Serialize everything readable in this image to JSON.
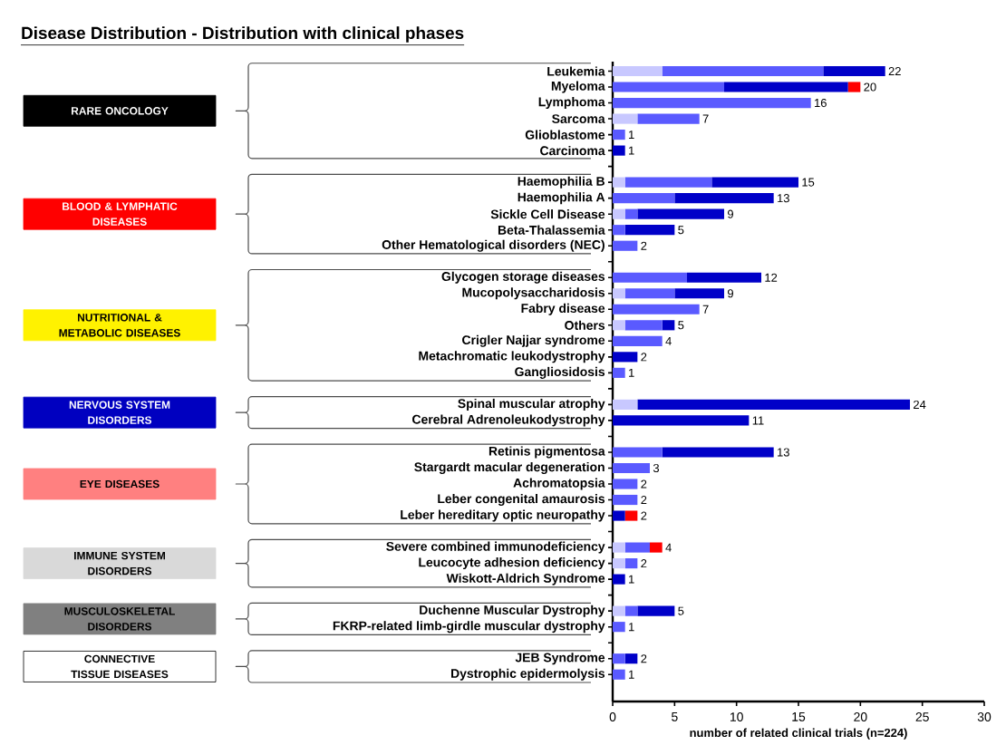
{
  "chart_data": {
    "type": "bar",
    "orientation": "horizontal",
    "stacked": true,
    "title": "Disease Distribution - Distribution with clinical phases",
    "xlabel": "number of related clinical trials (n=224)",
    "categories": [
      "Leukemia",
      "Myeloma",
      "Lymphoma",
      "Sarcoma",
      "Glioblastome",
      "Carcinoma",
      null,
      "Haemophilia B",
      "Haemophilia A",
      "Sickle Cell Disease",
      "Beta-Thalassemia",
      "Other Hematological disorders (NEC)",
      null,
      "Glycogen storage diseases",
      "Mucopolysaccharidosis",
      "Fabry disease",
      "Others",
      "Crigler Najjar syndrome",
      "Metachromatic leukodystrophy",
      "Gangliosidosis",
      null,
      "Spinal muscular atrophy",
      "Cerebral Adrenoleukodystrophy",
      null,
      "Retinis pigmentosa",
      "Stargardt macular degeneration",
      "Achromatopsia",
      "Leber congenital amaurosis",
      "Leber hereditary optic neuropathy",
      null,
      "Severe combined immunodeficiency",
      "Leucocyte adhesion deficiency",
      "Wiskott-Aldrich Syndrome",
      null,
      "Duchenne Muscular Dystrophy",
      "FKRP-related limb-girdle muscular dystrophy",
      null,
      "JEB Syndrome",
      "Dystrophic epidermolysis"
    ],
    "series": [
      {
        "color": "#c8c8ff",
        "values": [
          4,
          0,
          0,
          2,
          0,
          0,
          null,
          1,
          0,
          1,
          0,
          0,
          null,
          0,
          1,
          0,
          1,
          0,
          0,
          0,
          null,
          2,
          0,
          null,
          0,
          0,
          0,
          0,
          0,
          null,
          1,
          1,
          0,
          null,
          1,
          0,
          null,
          0,
          0
        ]
      },
      {
        "color": "#5a5aff",
        "values": [
          13,
          9,
          16,
          5,
          1,
          0,
          null,
          7,
          5,
          1,
          1,
          2,
          null,
          6,
          4,
          7,
          3,
          4,
          0,
          1,
          null,
          0,
          0,
          null,
          4,
          3,
          2,
          2,
          0,
          null,
          2,
          1,
          0,
          null,
          1,
          1,
          null,
          1,
          1
        ]
      },
      {
        "color": "#0000c8",
        "values": [
          5,
          10,
          0,
          0,
          0,
          1,
          null,
          7,
          8,
          7,
          4,
          0,
          null,
          6,
          4,
          0,
          1,
          0,
          2,
          0,
          null,
          22,
          11,
          null,
          9,
          0,
          0,
          0,
          1,
          null,
          0,
          0,
          1,
          null,
          3,
          0,
          null,
          1,
          0
        ]
      },
      {
        "color": "#ff0000",
        "values": [
          0,
          1,
          0,
          0,
          0,
          0,
          null,
          0,
          0,
          0,
          0,
          0,
          null,
          0,
          0,
          0,
          0,
          0,
          0,
          0,
          null,
          0,
          0,
          null,
          0,
          0,
          0,
          0,
          1,
          null,
          1,
          0,
          0,
          null,
          0,
          0,
          null,
          0,
          0
        ]
      }
    ],
    "totals": [
      "22",
      "20",
      "16",
      "7",
      "1",
      "1",
      null,
      "15",
      "13",
      "9",
      "5",
      "2",
      null,
      "12",
      "9",
      "7",
      "5",
      "4",
      "2",
      "1",
      null,
      "24",
      "11",
      null,
      "13",
      "3",
      "2",
      "2",
      "2",
      null,
      "4",
      "2",
      "1",
      null,
      "5",
      "1",
      null,
      "2",
      "1"
    ],
    "xlim": [
      0,
      30
    ],
    "xticks": [
      0,
      5,
      10,
      15,
      20,
      25,
      30
    ],
    "grid": false,
    "annotations": [
      "RARE ONCOLOGY",
      "BLOOD & LYMPHATIC DISEASES",
      "NUTRITIONAL & METABOLIC DISEASES",
      "NERVOUS SYSTEM DISORDERS",
      "EYE DISEASES",
      "IMMUNE SYSTEM DISORDERS",
      "MUSCULOSKELETAL DISORDERS",
      "CONNECTIVE TISSUE DISEASES"
    ]
  }
}
